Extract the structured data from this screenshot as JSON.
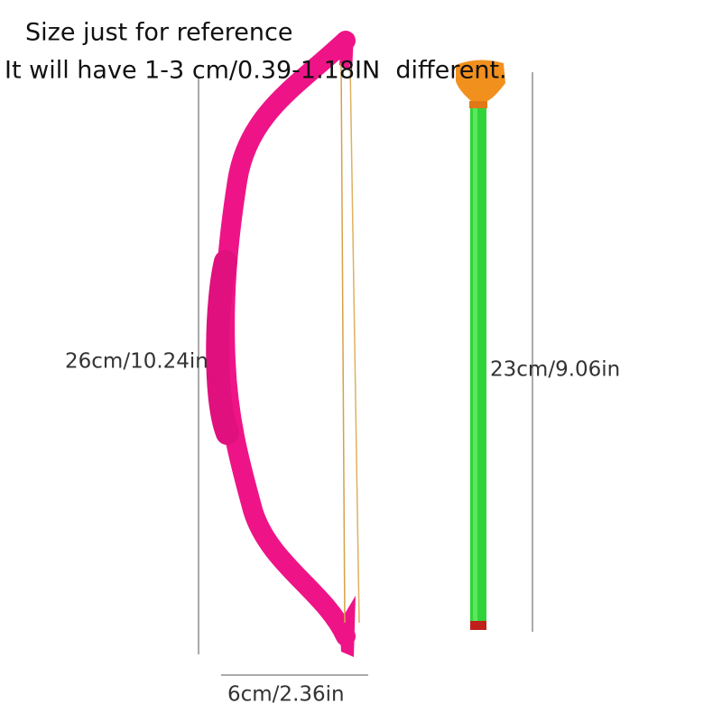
{
  "note": {
    "line1": "Size just for reference",
    "line2": "It will have 1-3 cm/0.39-1.18IN  different."
  },
  "dimensions": {
    "bow_height": "26cm/10.24in",
    "arrow_length": "23cm/9.06in",
    "bow_width": "6cm/2.36in"
  }
}
